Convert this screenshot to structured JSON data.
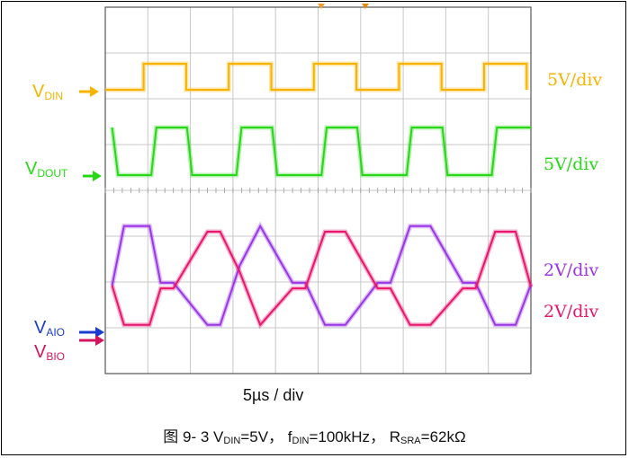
{
  "chart_data": {
    "type": "line",
    "title": "",
    "xlabel": "5µs / div",
    "ylabel": "",
    "x_unit": "µs",
    "x_per_div": 5,
    "x_divisions": 10,
    "xlim": [
      0,
      50
    ],
    "grid": true,
    "series": [
      {
        "name": "V_DIN",
        "label": "V",
        "label_sub": "DIN",
        "scale": "5V/div",
        "color": "#f6b400",
        "x": [
          0,
          4.5,
          4.5,
          9.5,
          9.5,
          14.5,
          14.5,
          19.5,
          19.5,
          24.5,
          24.5,
          29.5,
          29.5,
          34.5,
          34.5,
          39.5,
          39.5,
          44.5,
          44.5,
          49.5,
          49.5
        ],
        "y": [
          0,
          0,
          5,
          5,
          0,
          0,
          5,
          5,
          0,
          0,
          5,
          5,
          0,
          0,
          5,
          5,
          0,
          0,
          5,
          5,
          0
        ]
      },
      {
        "name": "V_DOUT",
        "label": "V",
        "label_sub": "DOUT",
        "scale": "5V/div",
        "color": "#28d818",
        "x": [
          0.8,
          1.5,
          5.4,
          6.0,
          9.6,
          10.2,
          15.4,
          16.0,
          19.6,
          20.2,
          25.4,
          26.0,
          29.6,
          30.2,
          35.4,
          36.0,
          39.6,
          40.2,
          45.4,
          46.0,
          49.6,
          50
        ],
        "y": [
          5,
          0,
          0,
          5,
          5,
          0,
          0,
          5,
          5,
          0,
          0,
          5,
          5,
          0,
          0,
          5,
          5,
          0,
          0,
          5,
          5,
          5
        ]
      },
      {
        "name": "V_AIO",
        "label": "V",
        "label_sub": "AIO",
        "scale": "2V/div",
        "color": "#9b36e6",
        "x": [
          0.8,
          2.2,
          5.2,
          6.5,
          8.0,
          12.0,
          13.5,
          15.8,
          18.2,
          22.0,
          23.5,
          25.8,
          28.2,
          32.0,
          33.5,
          35.8,
          38.2,
          42.0,
          43.5,
          45.8,
          48.2,
          50
        ],
        "y": [
          0,
          5.3,
          5.3,
          0.25,
          0.25,
          -3.5,
          -3.5,
          1.8,
          5.3,
          0.25,
          0.25,
          -3.5,
          -3.5,
          0.25,
          0.25,
          5.3,
          5.3,
          0.25,
          0.25,
          -3.5,
          -3.5,
          0.1
        ]
      },
      {
        "name": "V_BIO",
        "label": "V",
        "label_sub": "BIO",
        "scale": "2V/div",
        "color": "#e8166e",
        "x": [
          0.8,
          2.2,
          5.2,
          6.5,
          8.0,
          12.0,
          13.5,
          15.8,
          18.2,
          22.0,
          23.5,
          25.8,
          28.2,
          32.0,
          33.5,
          35.8,
          38.2,
          42.0,
          43.5,
          45.8,
          48.2,
          50
        ],
        "y": [
          0,
          -3.5,
          -3.5,
          -0.25,
          -0.25,
          4.8,
          4.8,
          1.2,
          -3.5,
          -0.25,
          -0.25,
          4.8,
          4.8,
          -0.25,
          -0.25,
          -3.5,
          -3.5,
          -0.25,
          -0.25,
          4.8,
          4.8,
          -0.1
        ]
      }
    ]
  },
  "labels": {
    "din": {
      "main": "V",
      "sub": "DIN"
    },
    "dout": {
      "main": "V",
      "sub": "DOUT"
    },
    "aio": {
      "main": "V",
      "sub": "AIO"
    },
    "bio": {
      "main": "V",
      "sub": "BIO"
    },
    "scale_din": "5V/div",
    "scale_dout": "5V/div",
    "scale_aio": "2V/div",
    "scale_bio": "2V/div",
    "timebase": "5µs / div"
  },
  "caption": {
    "prefix": "图 9- 3 V",
    "din_sub": "DIN",
    "part2": "=5V， f",
    "fdin_sub": "DIN",
    "part3": "=100kHz， R",
    "sra_sub": "SRA",
    "part4": "=62kΩ"
  },
  "colors": {
    "din": "#f6b400",
    "dout": "#28d818",
    "aio": "#9b36e6",
    "bio": "#e8166e",
    "aio_label": "#1a3ccf",
    "bio_label": "#d3145f",
    "grid": "#c8c8c8",
    "frame": "#000000"
  },
  "icons": {
    "din_marker": "arrow-right-icon",
    "dout_marker": "arrow-right-icon",
    "aio_marker": "arrow-right-icon",
    "bio_marker": "arrow-right-icon",
    "trigger_marker": "triangle-down-icon"
  }
}
